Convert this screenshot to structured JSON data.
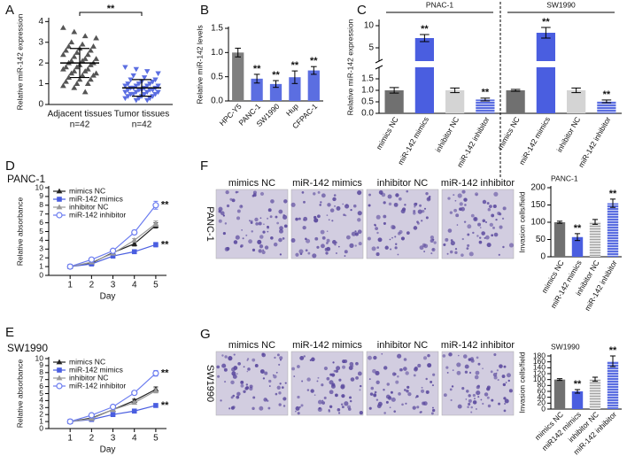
{
  "chart_data": [
    {
      "panel_label": "A",
      "type": "strip",
      "y_label": "Relative miR-142 expression",
      "categories": [
        "Adjacent tissues",
        "Tumor tissues"
      ],
      "category_notes": [
        "n=42",
        "n=42"
      ],
      "groups": [
        {
          "color": "#555555",
          "marker": "triangle",
          "mean": 2.0,
          "sd": 0.7,
          "values": [
            3.7,
            3.5,
            3.3,
            3.2,
            3.0,
            2.9,
            2.8,
            2.8,
            2.7,
            2.6,
            2.6,
            2.5,
            2.4,
            2.4,
            2.3,
            2.2,
            2.2,
            2.1,
            2.1,
            2.0,
            2.0,
            1.9,
            1.9,
            1.8,
            1.8,
            1.7,
            1.7,
            1.6,
            1.6,
            1.5,
            1.5,
            1.4,
            1.4,
            1.3,
            1.2,
            1.2,
            1.1,
            1.0,
            1.0,
            0.9,
            0.8,
            0.6
          ]
        },
        {
          "color": "#5b6ee1",
          "marker": "triangle-down",
          "mean": 0.8,
          "sd": 0.4,
          "values": [
            1.8,
            1.7,
            1.6,
            1.5,
            1.4,
            1.3,
            1.2,
            1.2,
            1.1,
            1.1,
            1.0,
            1.0,
            1.0,
            0.9,
            0.9,
            0.9,
            0.9,
            0.8,
            0.8,
            0.8,
            0.8,
            0.7,
            0.7,
            0.7,
            0.7,
            0.7,
            0.6,
            0.6,
            0.6,
            0.6,
            0.5,
            0.5,
            0.5,
            0.5,
            0.4,
            0.4,
            0.4,
            0.3,
            0.3,
            0.3,
            0.2,
            0.2
          ]
        }
      ],
      "significance": "**",
      "ylim": [
        0,
        4.1
      ],
      "yticks": [
        0,
        1,
        2,
        3,
        4
      ]
    },
    {
      "panel_label": "B",
      "type": "bar",
      "y_label": "Relative miR-142 levels",
      "categories": [
        "HPC-Y5",
        "PANC-1",
        "SW1990",
        "Hup",
        "CFPAC-1"
      ],
      "values": [
        1.0,
        0.46,
        0.35,
        0.49,
        0.63
      ],
      "errors": [
        0.09,
        0.09,
        0.07,
        0.13,
        0.08
      ],
      "colors": [
        "#7f7f7f",
        "#5b6ee1",
        "#5b6ee1",
        "#5b6ee1",
        "#5b6ee1"
      ],
      "significance": [
        null,
        "**",
        "**",
        "**",
        "**"
      ],
      "ylim": [
        0,
        1.5
      ],
      "yticks": [
        {
          "value": 0,
          "label": "0.0"
        },
        0.5,
        {
          "value": 1,
          "label": "1.0"
        },
        1.5
      ]
    },
    {
      "panel_label": "C",
      "type": "bar",
      "y_label": "Relative miR-142 expression",
      "categories": [
        "mimics NC",
        "miR-142 mimics",
        "inhibitor NC",
        "miR-142 inhibitor"
      ],
      "colors": [
        "#707070",
        "#4a5ee0",
        "#d4d4d4",
        "#5b6ee1"
      ],
      "hatch": [
        false,
        false,
        false,
        true
      ],
      "groups": [
        {
          "name": "PNAC-1",
          "values": [
            1.0,
            7.2,
            1.0,
            0.6
          ],
          "errors": [
            0.12,
            0.8,
            0.1,
            0.06
          ],
          "significance": [
            null,
            "**",
            null,
            "**"
          ]
        },
        {
          "name": "SW1990",
          "values": [
            1.0,
            8.4,
            1.0,
            0.52
          ],
          "errors": [
            0.04,
            1.2,
            0.1,
            0.06
          ],
          "significance": [
            null,
            "**",
            null,
            "**"
          ]
        }
      ],
      "ylim": [
        0,
        11
      ],
      "ybreak": 2,
      "yticks": [
        {
          "value": 0,
          "label": "0.0"
        },
        0.5,
        {
          "value": 1,
          "label": "1.0"
        },
        1.5,
        5,
        10
      ]
    },
    {
      "panel_label": "D",
      "type": "line",
      "title": "PANC-1",
      "x_label": "Day",
      "y_label": "Relative absorbance",
      "x": [
        1,
        2,
        3,
        4,
        5
      ],
      "xlim": [
        0,
        5.5
      ],
      "xticks": [
        1,
        2,
        3,
        4,
        5
      ],
      "ylim": [
        0,
        10
      ],
      "yticks": [
        0,
        1,
        2,
        3,
        4,
        5,
        6,
        7,
        8,
        9,
        10
      ],
      "series": [
        {
          "name": "mimics NC",
          "color": "#222222",
          "marker": "triangle",
          "values": [
            1,
            1.4,
            2.6,
            3.6,
            5.7
          ],
          "errors": [
            0.05,
            0.1,
            0.15,
            0.25,
            0.3
          ]
        },
        {
          "name": "miR-142 mimics",
          "color": "#4a5ee0",
          "marker": "square",
          "values": [
            1,
            1.3,
            2.2,
            2.7,
            3.5
          ],
          "errors": [
            0.05,
            0.08,
            0.12,
            0.15,
            0.25
          ],
          "significance": "**"
        },
        {
          "name": "inhibitor NC",
          "color": "#9a9a9a",
          "marker": "triangle",
          "values": [
            1,
            1.5,
            2.5,
            4.0,
            5.9
          ],
          "errors": [
            0.05,
            0.1,
            0.15,
            0.2,
            0.3
          ]
        },
        {
          "name": "miR-142 inhibitor",
          "color": "#6b7cf0",
          "marker": "circle-open",
          "values": [
            1,
            1.8,
            2.8,
            4.9,
            8.0
          ],
          "errors": [
            0.05,
            0.1,
            0.15,
            0.25,
            0.45
          ],
          "significance": "**"
        }
      ]
    },
    {
      "panel_label": "E",
      "type": "line",
      "title": "SW1990",
      "x_label": "Day",
      "y_label": "Relative absorbance",
      "x": [
        1,
        2,
        3,
        4,
        5
      ],
      "xlim": [
        0,
        5.5
      ],
      "xticks": [
        1,
        2,
        3,
        4,
        5
      ],
      "ylim": [
        0,
        10
      ],
      "yticks": [
        0,
        1,
        2,
        3,
        4,
        5,
        6,
        7,
        8,
        9,
        10
      ],
      "series": [
        {
          "name": "mimics NC",
          "color": "#222222",
          "marker": "triangle",
          "values": [
            1,
            1.5,
            2.7,
            4.0,
            5.6
          ],
          "errors": [
            0.05,
            0.1,
            0.15,
            0.2,
            0.35
          ]
        },
        {
          "name": "miR-142 mimics",
          "color": "#4a5ee0",
          "marker": "square",
          "values": [
            1,
            1.3,
            2.0,
            2.5,
            3.3
          ],
          "errors": [
            0.05,
            0.08,
            0.1,
            0.15,
            0.25
          ],
          "significance": "**"
        },
        {
          "name": "inhibitor NC",
          "color": "#9a9a9a",
          "marker": "triangle",
          "values": [
            1,
            1.4,
            2.7,
            3.7,
            5.4
          ],
          "errors": [
            0.05,
            0.1,
            0.15,
            0.2,
            0.3
          ]
        },
        {
          "name": "miR-142 inhibitor",
          "color": "#6b7cf0",
          "marker": "circle-open",
          "values": [
            1,
            1.9,
            3.1,
            5.1,
            7.9
          ],
          "errors": [
            0.05,
            0.1,
            0.15,
            0.25,
            0.4
          ],
          "significance": "**"
        }
      ]
    },
    {
      "panel_label": "F",
      "type": "bar",
      "row_label": "PANC-1",
      "image_labels": [
        "mimics NC",
        "miR-142 mimics",
        "inhibitor NC",
        "miR-142 inhibitor"
      ],
      "title": "PANC-1",
      "y_label": "Invasion cells/field",
      "categories": [
        "mimics NC",
        "miR-142 mimics",
        "inhibitor NC",
        "miR-142 inhibitor"
      ],
      "values": [
        100,
        57,
        101,
        155
      ],
      "errors": [
        3,
        10,
        7,
        12
      ],
      "colors": [
        "#707070",
        "#4a5ee0",
        "#e0e0e0",
        "#5b6ee1"
      ],
      "hatch": [
        false,
        false,
        true,
        true
      ],
      "significance": [
        null,
        "**",
        null,
        "**"
      ],
      "ylim": [
        0,
        200
      ],
      "yticks": [
        0,
        50,
        100,
        150,
        200
      ]
    },
    {
      "panel_label": "G",
      "type": "bar",
      "row_label": "SW1990",
      "image_labels": [
        "mimics NC",
        "miR-142 mimics",
        "inhibitor NC",
        "miR-142 inhibitor"
      ],
      "title": "SW1990",
      "y_label": "Invasion cells/field",
      "categories": [
        "mimics NC",
        "miR142 mimics",
        "inhibitor NC",
        "miR-142 inhibitor"
      ],
      "values": [
        100,
        60,
        101,
        162
      ],
      "errors": [
        3,
        6,
        7,
        18
      ],
      "colors": [
        "#707070",
        "#4a5ee0",
        "#e0e0e0",
        "#5b6ee1"
      ],
      "hatch": [
        false,
        false,
        true,
        true
      ],
      "significance": [
        null,
        "**",
        null,
        "**"
      ],
      "ylim": [
        0,
        180
      ],
      "yticks": [
        0,
        20,
        40,
        60,
        80,
        100,
        120,
        140,
        160,
        180
      ]
    }
  ]
}
